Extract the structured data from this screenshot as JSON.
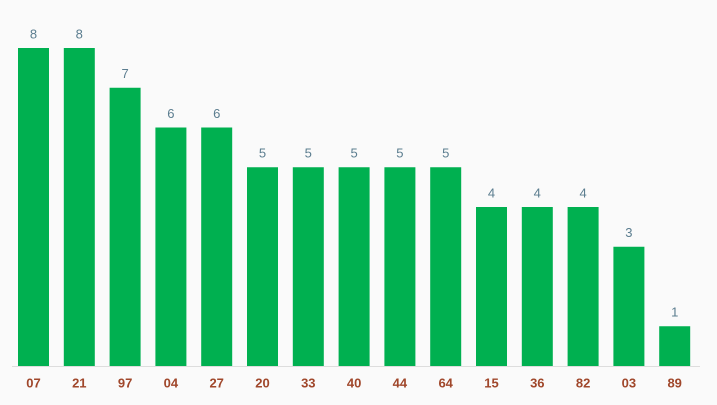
{
  "chart_data": {
    "type": "bar",
    "categories": [
      "07",
      "21",
      "97",
      "04",
      "27",
      "20",
      "33",
      "40",
      "44",
      "64",
      "15",
      "36",
      "82",
      "03",
      "89"
    ],
    "values": [
      8,
      8,
      7,
      6,
      6,
      5,
      5,
      5,
      5,
      5,
      4,
      4,
      4,
      3,
      1
    ],
    "color": "#00b050"
  }
}
